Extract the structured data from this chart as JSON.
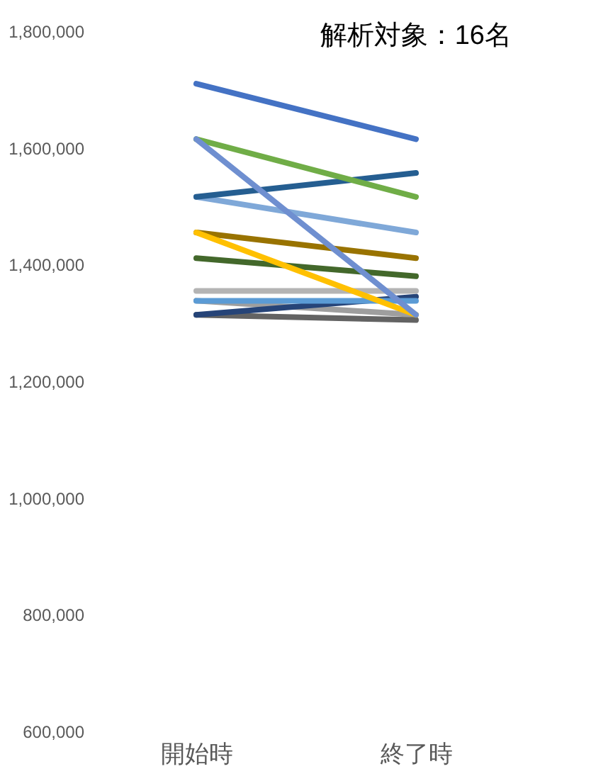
{
  "chart_data": {
    "type": "line",
    "categories": [
      "開始時",
      "終了時"
    ],
    "ylim": [
      600000,
      1800000
    ],
    "yticks": [
      {
        "value": 600000,
        "label": "600,000"
      },
      {
        "value": 800000,
        "label": "800,000"
      },
      {
        "value": 1000000,
        "label": "1,000,000"
      },
      {
        "value": 1200000,
        "label": "1,200,000"
      },
      {
        "value": 1400000,
        "label": "1,400,000"
      },
      {
        "value": 1600000,
        "label": "1,600,000"
      },
      {
        "value": 1800000,
        "label": "1,800,000"
      }
    ],
    "grid": false,
    "marker": "none",
    "line_style": "solid",
    "annotations": [
      "解析対象：16名"
    ],
    "series": [
      {
        "color": "#9e9e9e",
        "values": [
          1338000,
          1314000
        ]
      },
      {
        "color": "#636363",
        "values": [
          1314000,
          1305000
        ]
      },
      {
        "color": "#264478",
        "values": [
          1314000,
          1345000
        ]
      },
      {
        "color": "#5b9bd5",
        "values": [
          1338000,
          1338000
        ]
      },
      {
        "color": "#b4b4b4",
        "values": [
          1355000,
          1355000
        ]
      },
      {
        "color": "#43682b",
        "values": [
          1411000,
          1380000
        ]
      },
      {
        "color": "#997300",
        "values": [
          1455000,
          1411000
        ]
      },
      {
        "color": "#ffc000",
        "values": [
          1455000,
          1314000
        ]
      },
      {
        "color": "#7fa8d8",
        "values": [
          1516000,
          1455000
        ]
      },
      {
        "color": "#255e91",
        "values": [
          1516000,
          1557000
        ]
      },
      {
        "color": "#70ad47",
        "values": [
          1615000,
          1516000
        ]
      },
      {
        "color": "#6f8fd0",
        "values": [
          1615000,
          1314000
        ]
      },
      {
        "color": "#4472c4",
        "values": [
          1710000,
          1615000
        ]
      }
    ]
  }
}
